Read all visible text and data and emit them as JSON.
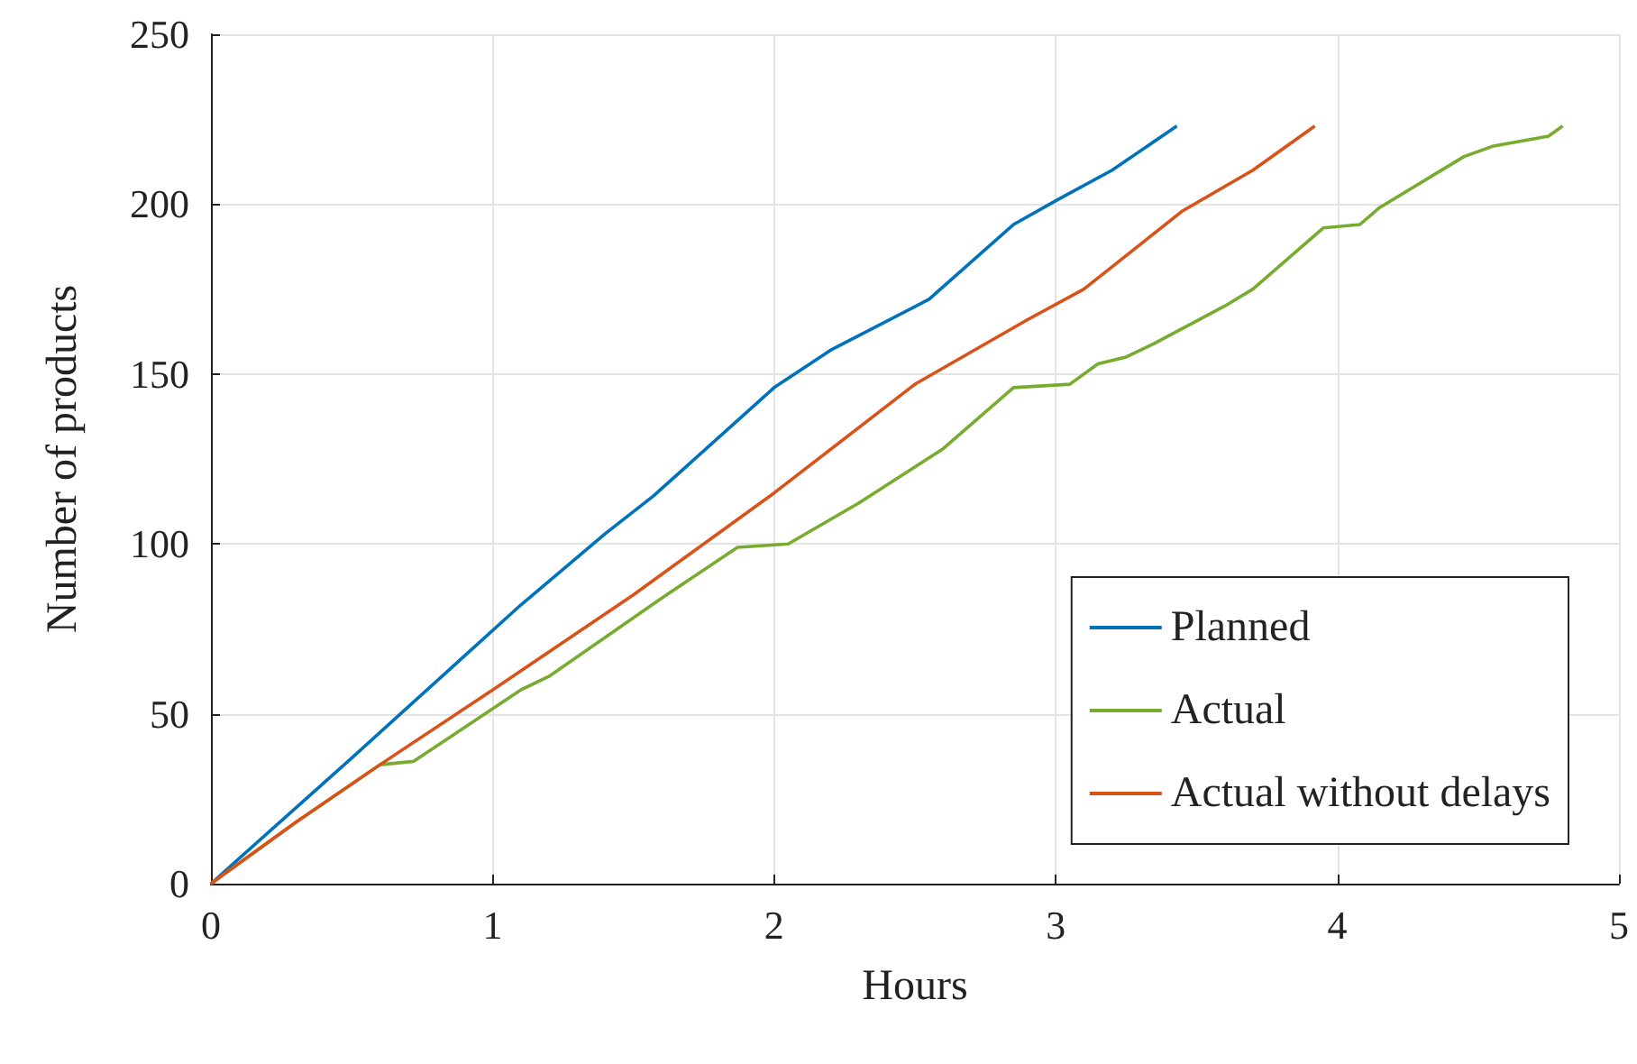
{
  "chart_data": {
    "type": "line",
    "xlabel": "Hours",
    "ylabel": "Number of products",
    "xlim": [
      0,
      5
    ],
    "xticks": [
      0,
      1,
      2,
      3,
      4,
      5
    ],
    "ylim": [
      0,
      250
    ],
    "yticks": [
      0,
      50,
      100,
      150,
      200,
      250
    ],
    "grid": true,
    "legend": "bottom right",
    "marker": "none",
    "line_style": "solid",
    "series": [
      {
        "name": "Planned",
        "color": "#0072bd",
        "x": [
          0,
          0.5,
          1.1,
          1.4,
          1.57,
          2.0,
          2.2,
          2.55,
          2.85,
          3.0,
          3.2,
          3.43
        ],
        "values": [
          0,
          37,
          82,
          103,
          114,
          146,
          157,
          172,
          194,
          201,
          210,
          223
        ]
      },
      {
        "name": "Actual",
        "color": "#77ac30",
        "x": [
          0,
          0.3,
          0.6,
          0.72,
          1.1,
          1.2,
          1.6,
          1.87,
          2.05,
          2.3,
          2.6,
          2.85,
          3.05,
          3.15,
          3.25,
          3.35,
          3.6,
          3.7,
          3.95,
          4.08,
          4.15,
          4.45,
          4.55,
          4.75,
          4.8
        ],
        "values": [
          0,
          18,
          35,
          36,
          57,
          61,
          84,
          99,
          100,
          112,
          128,
          146,
          147,
          153,
          155,
          159,
          170,
          175,
          193,
          194,
          199,
          214,
          217,
          220,
          223
        ]
      },
      {
        "name": "Actual without delays",
        "color": "#d95319",
        "x": [
          0,
          0.3,
          0.6,
          1.0,
          1.5,
          2.0,
          2.5,
          2.9,
          3.1,
          3.45,
          3.7,
          3.92
        ],
        "values": [
          0,
          18,
          35,
          57,
          85,
          115,
          147,
          166,
          175,
          198,
          210,
          223
        ]
      }
    ]
  }
}
